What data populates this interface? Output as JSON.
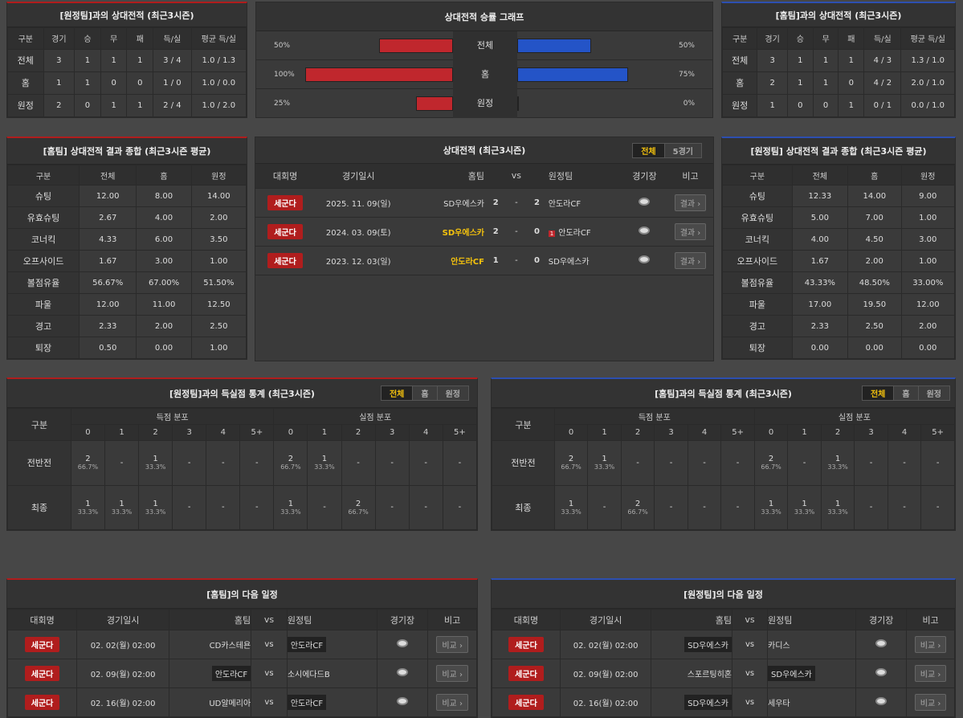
{
  "h2h_away": {
    "title": "[원정팀]과의 상대전적 (최근3시즌)",
    "headers": [
      "구분",
      "경기",
      "승",
      "무",
      "패",
      "득/실",
      "평균 득/실"
    ],
    "rows": [
      [
        "전체",
        "3",
        "1",
        "1",
        "1",
        "3 / 4",
        "1.0 / 1.3"
      ],
      [
        "홈",
        "1",
        "1",
        "0",
        "0",
        "1 / 0",
        "1.0 / 0.0"
      ],
      [
        "원정",
        "2",
        "0",
        "1",
        "1",
        "2 / 4",
        "1.0 / 2.0"
      ]
    ]
  },
  "graph": {
    "title": "상대전적 승률 그래프",
    "rows": [
      {
        "label": "전체",
        "left": "50%",
        "right": "50%",
        "left_val": 50,
        "right_val": 50
      },
      {
        "label": "홈",
        "left": "100%",
        "right": "75%",
        "left_val": 100,
        "right_val": 75
      },
      {
        "label": "원정",
        "left": "25%",
        "right": "0%",
        "left_val": 25,
        "right_val": 0
      }
    ]
  },
  "h2h_home": {
    "title": "[홈팀]과의 상대전적 (최근3시즌)",
    "headers": [
      "구분",
      "경기",
      "승",
      "무",
      "패",
      "득/실",
      "평균 득/실"
    ],
    "rows": [
      [
        "전체",
        "3",
        "1",
        "1",
        "1",
        "4 / 3",
        "1.3 / 1.0"
      ],
      [
        "홈",
        "2",
        "1",
        "1",
        "0",
        "4 / 2",
        "2.0 / 1.0"
      ],
      [
        "원정",
        "1",
        "0",
        "0",
        "1",
        "0 / 1",
        "0.0 / 1.0"
      ]
    ]
  },
  "sum_home": {
    "title": "[홈팀] 상대전적 결과 종합 (최근3시즌 평균)",
    "headers": [
      "구분",
      "전체",
      "홈",
      "원정"
    ],
    "rows": [
      [
        "슈팅",
        "12.00",
        "8.00",
        "14.00"
      ],
      [
        "유효슈팅",
        "2.67",
        "4.00",
        "2.00"
      ],
      [
        "코너킥",
        "4.33",
        "6.00",
        "3.50"
      ],
      [
        "오프사이드",
        "1.67",
        "3.00",
        "1.00"
      ],
      [
        "볼점유율",
        "56.67%",
        "67.00%",
        "51.50%"
      ],
      [
        "파울",
        "12.00",
        "11.00",
        "12.50"
      ],
      [
        "경고",
        "2.33",
        "2.00",
        "2.50"
      ],
      [
        "퇴장",
        "0.50",
        "0.00",
        "1.00"
      ]
    ]
  },
  "sum_away": {
    "title": "[원정팀] 상대전적 결과 종합 (최근3시즌 평균)",
    "headers": [
      "구분",
      "전체",
      "홈",
      "원정"
    ],
    "rows": [
      [
        "슈팅",
        "12.33",
        "14.00",
        "9.00"
      ],
      [
        "유효슈팅",
        "5.00",
        "7.00",
        "1.00"
      ],
      [
        "코너킥",
        "4.00",
        "4.50",
        "3.00"
      ],
      [
        "오프사이드",
        "1.67",
        "2.00",
        "1.00"
      ],
      [
        "볼점유율",
        "43.33%",
        "48.50%",
        "33.00%"
      ],
      [
        "파울",
        "17.00",
        "19.50",
        "12.00"
      ],
      [
        "경고",
        "2.33",
        "2.50",
        "2.00"
      ],
      [
        "퇴장",
        "0.00",
        "0.00",
        "0.00"
      ]
    ]
  },
  "h2h_list": {
    "title": "상대전적 (최근3시즌)",
    "tabs": [
      "전체",
      "5경기"
    ],
    "headers": {
      "league": "대회명",
      "date": "경기일시",
      "home": "홈팀",
      "vs": "vs",
      "away": "원정팀",
      "stadium": "경기장",
      "note": "비고"
    },
    "matches": [
      {
        "league": "세군다",
        "date": "2025. 11. 09(일)",
        "home": "SD우에스카",
        "hs": "2",
        "as": "2",
        "away": "안도라CF",
        "btn": "결과",
        "home_win": false,
        "away_win": false,
        "redcard": ""
      },
      {
        "league": "세군다",
        "date": "2024. 03. 09(토)",
        "home": "SD우에스카",
        "hs": "2",
        "as": "0",
        "away": "안도라CF",
        "btn": "결과",
        "home_win": true,
        "away_win": false,
        "redcard": "1"
      },
      {
        "league": "세군다",
        "date": "2023. 12. 03(일)",
        "home": "안도라CF",
        "hs": "1",
        "as": "0",
        "away": "SD우에스카",
        "btn": "결과",
        "home_win": true,
        "away_win": false,
        "redcard": ""
      }
    ]
  },
  "goals_away": {
    "title": "[원정팀]과의 득실점 통계 (최근3시즌)",
    "tabs": [
      "전체",
      "홈",
      "원정"
    ],
    "col_label": "구분",
    "scored": "득점 분포",
    "conceded": "실점 분포",
    "buckets": [
      "0",
      "1",
      "2",
      "3",
      "4",
      "5+"
    ],
    "rows": [
      {
        "label": "전반전",
        "cells": [
          [
            "2",
            "66.7%"
          ],
          [
            "-",
            ""
          ],
          [
            "1",
            "33.3%"
          ],
          [
            "-",
            ""
          ],
          [
            "-",
            ""
          ],
          [
            "-",
            ""
          ],
          [
            "2",
            "66.7%"
          ],
          [
            "1",
            "33.3%"
          ],
          [
            "-",
            ""
          ],
          [
            "-",
            ""
          ],
          [
            "-",
            ""
          ],
          [
            "-",
            ""
          ]
        ]
      },
      {
        "label": "최종",
        "cells": [
          [
            "1",
            "33.3%"
          ],
          [
            "1",
            "33.3%"
          ],
          [
            "1",
            "33.3%"
          ],
          [
            "-",
            ""
          ],
          [
            "-",
            ""
          ],
          [
            "-",
            ""
          ],
          [
            "1",
            "33.3%"
          ],
          [
            "-",
            ""
          ],
          [
            "2",
            "66.7%"
          ],
          [
            "-",
            ""
          ],
          [
            "-",
            ""
          ],
          [
            "-",
            ""
          ]
        ]
      }
    ]
  },
  "goals_home": {
    "title": "[홈팀]과의 득실점 통계 (최근3시즌)",
    "tabs": [
      "전체",
      "홈",
      "원정"
    ],
    "col_label": "구분",
    "scored": "득점 분포",
    "conceded": "실점 분포",
    "buckets": [
      "0",
      "1",
      "2",
      "3",
      "4",
      "5+"
    ],
    "rows": [
      {
        "label": "전반전",
        "cells": [
          [
            "2",
            "66.7%"
          ],
          [
            "1",
            "33.3%"
          ],
          [
            "-",
            ""
          ],
          [
            "-",
            ""
          ],
          [
            "-",
            ""
          ],
          [
            "-",
            ""
          ],
          [
            "2",
            "66.7%"
          ],
          [
            "-",
            ""
          ],
          [
            "1",
            "33.3%"
          ],
          [
            "-",
            ""
          ],
          [
            "-",
            ""
          ],
          [
            "-",
            ""
          ]
        ]
      },
      {
        "label": "최종",
        "cells": [
          [
            "1",
            "33.3%"
          ],
          [
            "-",
            ""
          ],
          [
            "2",
            "66.7%"
          ],
          [
            "-",
            ""
          ],
          [
            "-",
            ""
          ],
          [
            "-",
            ""
          ],
          [
            "1",
            "33.3%"
          ],
          [
            "1",
            "33.3%"
          ],
          [
            "1",
            "33.3%"
          ],
          [
            "-",
            ""
          ],
          [
            "-",
            ""
          ],
          [
            "-",
            ""
          ]
        ]
      }
    ]
  },
  "next_home": {
    "title": "[홈팀]의 다음 일정",
    "headers": {
      "league": "대회명",
      "date": "경기일시",
      "home": "홈팀",
      "vs": "vs",
      "away": "원정팀",
      "stadium": "경기장",
      "note": "비고"
    },
    "matches": [
      {
        "league": "세군다",
        "date": "02. 02(월) 02:00",
        "home": "CD카스테욘",
        "away": "안도라CF",
        "btn": "비교",
        "boxed": "away"
      },
      {
        "league": "세군다",
        "date": "02. 09(월) 02:00",
        "home": "안도라CF",
        "away": "소시에다드B",
        "btn": "비교",
        "boxed": "home"
      },
      {
        "league": "세군다",
        "date": "02. 16(월) 02:00",
        "home": "UD알메리아",
        "away": "안도라CF",
        "btn": "비교",
        "boxed": "away"
      }
    ]
  },
  "next_away": {
    "title": "[원정팀]의 다음 일정",
    "headers": {
      "league": "대회명",
      "date": "경기일시",
      "home": "홈팀",
      "vs": "vs",
      "away": "원정팀",
      "stadium": "경기장",
      "note": "비고"
    },
    "matches": [
      {
        "league": "세군다",
        "date": "02. 02(월) 02:00",
        "home": "SD우에스카",
        "away": "카디스",
        "btn": "비교",
        "boxed": "home"
      },
      {
        "league": "세군다",
        "date": "02. 09(월) 02:00",
        "home": "스포르팅히혼",
        "away": "SD우에스카",
        "btn": "비교",
        "boxed": "away"
      },
      {
        "league": "세군다",
        "date": "02. 16(월) 02:00",
        "home": "SD우에스카",
        "away": "세우타",
        "btn": "비교",
        "boxed": "home"
      }
    ]
  },
  "colors": {
    "accent_red": "#b01d1d",
    "accent_blue": "#2d4fb0",
    "highlight": "#f4c20d",
    "bar_red": "#c0272d",
    "bar_blue": "#2454c7"
  }
}
